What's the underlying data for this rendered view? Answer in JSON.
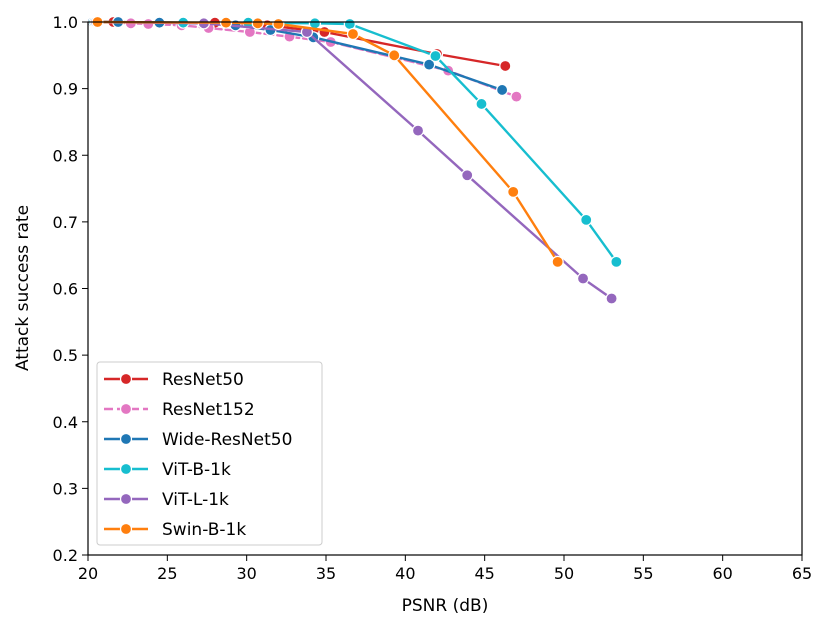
{
  "chart_data": {
    "type": "line",
    "title": "",
    "xlabel": "PSNR (dB)",
    "ylabel": "Attack success rate",
    "xlim": [
      20,
      65
    ],
    "ylim": [
      0.2,
      1.0
    ],
    "xticks": [
      20,
      25,
      30,
      35,
      40,
      45,
      50,
      55,
      60,
      65
    ],
    "yticks": [
      0.2,
      0.3,
      0.4,
      0.5,
      0.6,
      0.7,
      0.8,
      0.9,
      1.0
    ],
    "xtick_labels": [
      "20",
      "25",
      "30",
      "35",
      "40",
      "45",
      "50",
      "55",
      "60",
      "65"
    ],
    "ytick_labels": [
      "0.2",
      "0.3",
      "0.4",
      "0.5",
      "0.6",
      "0.7",
      "0.8",
      "0.9",
      "1.0"
    ],
    "grid": false,
    "legend_position": "lower-left",
    "series": [
      {
        "name": "ResNet50",
        "color": "#d62728",
        "dashed": false,
        "x": [
          20.6,
          21.6,
          24.5,
          28.0,
          31.3,
          34.9,
          42.0,
          46.3
        ],
        "y": [
          1.0,
          1.0,
          0.999,
          0.999,
          0.995,
          0.985,
          0.952,
          0.934
        ]
      },
      {
        "name": "ResNet152",
        "color": "#e377c2",
        "dashed": true,
        "x": [
          20.5,
          22.7,
          23.8,
          25.9,
          27.6,
          30.2,
          32.7,
          35.3,
          42.7,
          47.0
        ],
        "y": [
          1.0,
          0.998,
          0.997,
          0.995,
          0.991,
          0.985,
          0.978,
          0.97,
          0.927,
          0.888
        ]
      },
      {
        "name": "Wide-ResNet50",
        "color": "#1f77b4",
        "dashed": false,
        "x": [
          20.3,
          21.9,
          24.5,
          27.3,
          29.3,
          31.5,
          34.2,
          41.5,
          46.1
        ],
        "y": [
          1.0,
          1.0,
          0.999,
          0.998,
          0.995,
          0.988,
          0.977,
          0.936,
          0.898
        ]
      },
      {
        "name": "ViT-B-1k",
        "color": "#17becf",
        "dashed": false,
        "x": [
          20.4,
          26.0,
          30.1,
          34.3,
          36.5,
          41.9,
          44.8,
          51.4,
          53.3
        ],
        "y": [
          1.0,
          0.999,
          0.999,
          0.998,
          0.997,
          0.949,
          0.877,
          0.703,
          0.64
        ]
      },
      {
        "name": "ViT-L-1k",
        "color": "#9467bd",
        "dashed": false,
        "x": [
          20.5,
          27.3,
          33.8,
          40.8,
          43.9,
          51.2,
          53.0
        ],
        "y": [
          1.0,
          0.998,
          0.985,
          0.837,
          0.77,
          0.615,
          0.585
        ]
      },
      {
        "name": "Swin-B-1k",
        "color": "#ff7f0e",
        "dashed": false,
        "x": [
          20.6,
          28.7,
          30.7,
          32.0,
          36.7,
          39.3,
          46.8,
          49.6
        ],
        "y": [
          1.0,
          0.999,
          0.998,
          0.997,
          0.982,
          0.95,
          0.745,
          0.64
        ]
      }
    ]
  }
}
